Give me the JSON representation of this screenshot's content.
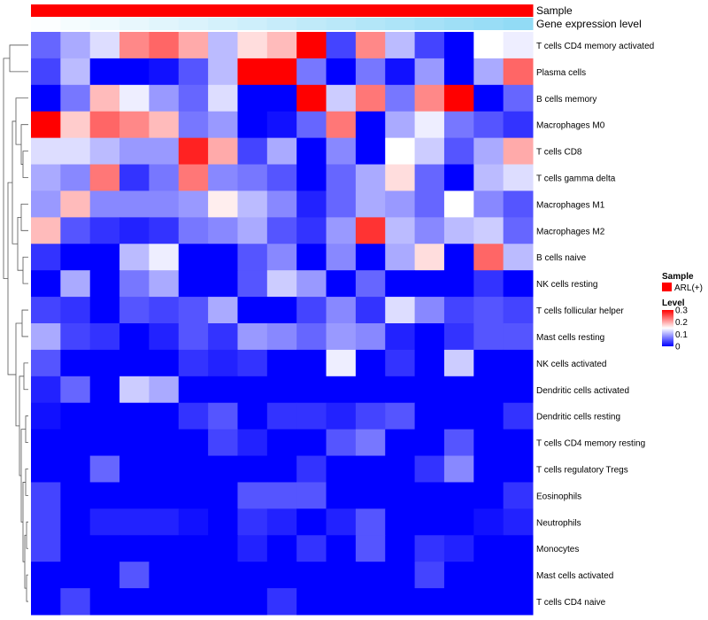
{
  "chart_data": {
    "type": "heatmap",
    "annotation_tracks": [
      {
        "name": "Sample",
        "colors_key": "sample_color"
      },
      {
        "name": "Gene expression level",
        "colors_key": "gene_expression"
      }
    ],
    "sample_color": "#ff0000",
    "gene_expression": [
      0.02,
      0.06,
      0.1,
      0.14,
      0.18,
      0.22,
      0.26,
      0.3,
      0.34,
      0.38,
      0.42,
      0.46,
      0.5,
      0.54,
      0.58,
      0.62,
      0.66
    ],
    "rows": [
      "T cells CD4 memory activated",
      "Plasma cells",
      "B cells memory",
      "Macrophages M0",
      "T cells CD8",
      "T cells gamma delta",
      "Macrophages M1",
      "Macrophages M2",
      "B cells naive",
      "NK cells resting",
      "T cells follicular helper",
      "Mast cells resting",
      "NK cells activated",
      "Dendritic cells activated",
      "Dendritic cells resting",
      "T cells CD4 memory resting",
      "T cells regulatory  Tregs",
      "Eosinophils",
      "Neutrophils",
      "Monocytes",
      "Mast cells activated",
      "T cells CD4 naive"
    ],
    "values": [
      [
        0.06,
        0.1,
        0.13,
        0.22,
        0.24,
        0.2,
        0.11,
        0.17,
        0.19,
        0.3,
        0.04,
        0.22,
        0.11,
        0.04,
        0.0,
        0.15,
        0.14
      ],
      [
        0.04,
        0.11,
        0.0,
        0.0,
        0.01,
        0.05,
        0.11,
        0.3,
        0.31,
        0.07,
        0.0,
        0.07,
        0.01,
        0.09,
        0.0,
        0.1,
        0.24
      ],
      [
        0.0,
        0.07,
        0.19,
        0.14,
        0.09,
        0.06,
        0.13,
        0.0,
        0.0,
        0.3,
        0.12,
        0.23,
        0.07,
        0.22,
        0.31,
        0.0,
        0.06
      ],
      [
        0.31,
        0.18,
        0.24,
        0.22,
        0.19,
        0.07,
        0.09,
        0.0,
        0.01,
        0.06,
        0.23,
        0.0,
        0.1,
        0.14,
        0.07,
        0.05,
        0.03
      ],
      [
        0.13,
        0.13,
        0.11,
        0.09,
        0.09,
        0.28,
        0.2,
        0.04,
        0.1,
        0.0,
        0.08,
        0.0,
        0.15,
        0.12,
        0.05,
        0.1,
        0.2
      ],
      [
        0.1,
        0.08,
        0.23,
        0.03,
        0.07,
        0.23,
        0.08,
        0.07,
        0.05,
        0.0,
        0.06,
        0.1,
        0.17,
        0.06,
        0.0,
        0.11,
        0.13
      ],
      [
        0.09,
        0.19,
        0.08,
        0.08,
        0.08,
        0.09,
        0.16,
        0.11,
        0.08,
        0.02,
        0.06,
        0.1,
        0.09,
        0.06,
        0.15,
        0.08,
        0.05
      ],
      [
        0.19,
        0.05,
        0.03,
        0.02,
        0.03,
        0.07,
        0.08,
        0.1,
        0.05,
        0.03,
        0.09,
        0.27,
        0.11,
        0.08,
        0.11,
        0.12,
        0.06
      ],
      [
        0.03,
        0.0,
        0.0,
        0.11,
        0.14,
        0.0,
        0.0,
        0.05,
        0.08,
        0.0,
        0.08,
        0.0,
        0.1,
        0.17,
        0.0,
        0.24,
        0.11
      ],
      [
        0.0,
        0.1,
        0.0,
        0.07,
        0.1,
        0.0,
        0.0,
        0.05,
        0.12,
        0.09,
        0.0,
        0.06,
        0.0,
        0.0,
        0.0,
        0.03,
        0.0
      ],
      [
        0.04,
        0.03,
        0.0,
        0.05,
        0.04,
        0.05,
        0.1,
        0.0,
        0.0,
        0.04,
        0.08,
        0.03,
        0.13,
        0.08,
        0.04,
        0.05,
        0.04
      ],
      [
        0.1,
        0.04,
        0.03,
        0.0,
        0.02,
        0.05,
        0.03,
        0.09,
        0.08,
        0.06,
        0.09,
        0.08,
        0.02,
        0.0,
        0.03,
        0.05,
        0.05
      ],
      [
        0.05,
        0.0,
        0.0,
        0.0,
        0.0,
        0.03,
        0.02,
        0.03,
        0.0,
        0.0,
        0.14,
        0.0,
        0.03,
        0.0,
        0.12,
        0.0,
        0.0
      ],
      [
        0.02,
        0.06,
        0.0,
        0.12,
        0.1,
        0.0,
        0.0,
        0.0,
        0.0,
        0.0,
        0.0,
        0.0,
        0.0,
        0.0,
        0.0,
        0.0,
        0.0
      ],
      [
        0.01,
        0.0,
        0.0,
        0.0,
        0.0,
        0.03,
        0.05,
        0.0,
        0.03,
        0.03,
        0.02,
        0.04,
        0.05,
        0.0,
        0.0,
        0.0,
        0.03
      ],
      [
        0.0,
        0.0,
        0.0,
        0.0,
        0.0,
        0.0,
        0.04,
        0.02,
        0.0,
        0.0,
        0.05,
        0.07,
        0.0,
        0.0,
        0.05,
        0.0,
        0.0
      ],
      [
        0.0,
        0.0,
        0.06,
        0.0,
        0.0,
        0.0,
        0.0,
        0.0,
        0.0,
        0.03,
        0.0,
        0.0,
        0.0,
        0.03,
        0.08,
        0.0,
        0.0
      ],
      [
        0.04,
        0.0,
        0.0,
        0.0,
        0.0,
        0.0,
        0.0,
        0.05,
        0.05,
        0.05,
        0.0,
        0.0,
        0.0,
        0.0,
        0.0,
        0.0,
        0.03
      ],
      [
        0.04,
        0.0,
        0.02,
        0.02,
        0.02,
        0.01,
        0.0,
        0.03,
        0.02,
        0.0,
        0.02,
        0.05,
        0.0,
        0.0,
        0.0,
        0.01,
        0.02
      ],
      [
        0.04,
        0.0,
        0.0,
        0.0,
        0.0,
        0.0,
        0.0,
        0.02,
        0.0,
        0.03,
        0.0,
        0.05,
        0.0,
        0.03,
        0.02,
        0.0,
        0.0
      ],
      [
        0.0,
        0.0,
        0.0,
        0.05,
        0.0,
        0.0,
        0.0,
        0.0,
        0.0,
        0.0,
        0.0,
        0.0,
        0.0,
        0.04,
        0.0,
        0.0,
        0.0
      ],
      [
        0.0,
        0.04,
        0.0,
        0.0,
        0.0,
        0.0,
        0.0,
        0.0,
        0.03,
        0.0,
        0.0,
        0.0,
        0.0,
        0.0,
        0.0,
        0.0,
        0.0
      ]
    ],
    "color_scale": {
      "min": 0,
      "mid": 0.15,
      "max": 0.3,
      "low_color": "#0000ff",
      "mid_color": "#ffffff",
      "high_color": "#ff0000"
    },
    "legend": {
      "sample_title": "Sample",
      "sample_entry": "ARL(+)",
      "level_title": "Level",
      "ticks": [
        {
          "value": 0.3,
          "label": "0.3"
        },
        {
          "value": 0.2,
          "label": "0.2"
        },
        {
          "value": 0.1,
          "label": "0.1"
        },
        {
          "value": 0,
          "label": "0"
        }
      ],
      "position": "right"
    },
    "dendrogram": "rows-left",
    "grid": false
  }
}
